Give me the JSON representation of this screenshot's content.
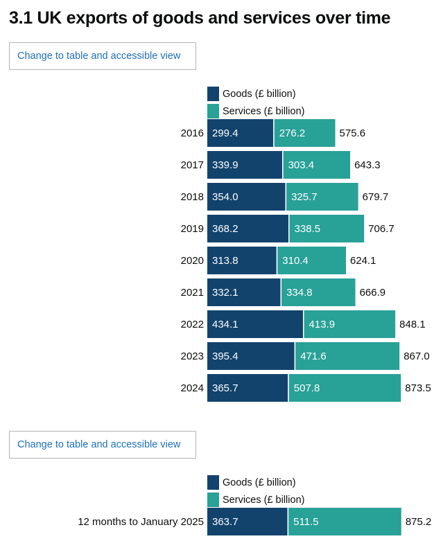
{
  "title": "3.1 UK exports of goods and services over time",
  "toggle_label": "Change to table and accessible view",
  "colors": {
    "goods": "#12436d",
    "services": "#28a197"
  },
  "legend": {
    "goods": "Goods (£ billion)",
    "services": "Services (£ billion)"
  },
  "chart_data": [
    {
      "type": "bar",
      "orientation": "horizontal",
      "stacked": true,
      "legend_position": "top",
      "categories": [
        "2016",
        "2017",
        "2018",
        "2019",
        "2020",
        "2021",
        "2022",
        "2023",
        "2024"
      ],
      "series": [
        {
          "name": "Goods (£ billion)",
          "values": [
            299.4,
            339.9,
            354.0,
            368.2,
            313.8,
            332.1,
            434.1,
            395.4,
            365.7
          ],
          "labels": [
            "299.4",
            "339.9",
            "354.0",
            "368.2",
            "313.8",
            "332.1",
            "434.1",
            "395.4",
            "365.7"
          ]
        },
        {
          "name": "Services (£ billion)",
          "values": [
            276.2,
            303.4,
            325.7,
            338.5,
            310.4,
            334.8,
            413.9,
            471.6,
            507.8
          ],
          "labels": [
            "276.2",
            "303.4",
            "325.7",
            "338.5",
            "310.4",
            "334.8",
            "413.9",
            "471.6",
            "507.8"
          ]
        }
      ],
      "totals": [
        "575.6",
        "643.3",
        "679.7",
        "706.7",
        "624.1",
        "666.9",
        "848.1",
        "867.0",
        "873.5"
      ]
    },
    {
      "type": "bar",
      "orientation": "horizontal",
      "stacked": true,
      "legend_position": "top",
      "categories": [
        "12 months to January 2025"
      ],
      "series": [
        {
          "name": "Goods (£ billion)",
          "values": [
            363.7
          ],
          "labels": [
            "363.7"
          ]
        },
        {
          "name": "Services (£ billion)",
          "values": [
            511.5
          ],
          "labels": [
            "511.5"
          ]
        }
      ],
      "totals": [
        "875.2"
      ]
    }
  ]
}
